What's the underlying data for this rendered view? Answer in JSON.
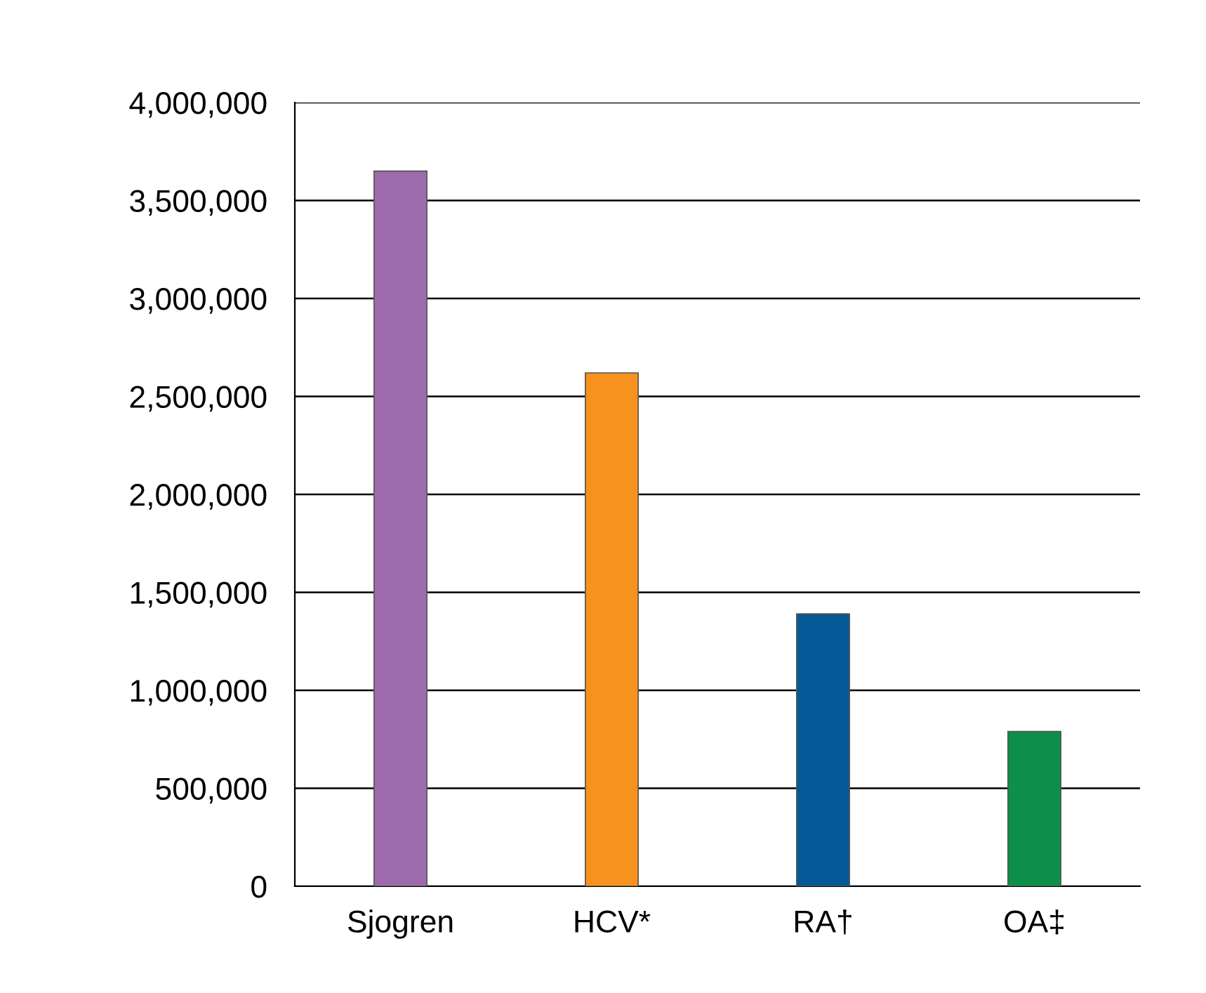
{
  "chart_data": {
    "type": "bar",
    "categories": [
      "Sjogren",
      "HCV*",
      "RA†",
      "OA‡"
    ],
    "values": [
      3650000,
      2620000,
      1390000,
      790000
    ],
    "colors": [
      "#9e6cac",
      "#f7921e",
      "#045996",
      "#0c8f4a"
    ],
    "ylim": [
      0,
      4000000
    ],
    "yticks": [
      0,
      {
        "value": 500000,
        "label": "500,000"
      },
      {
        "value": 1000000,
        "label": "1,000,000"
      },
      {
        "value": 1500000,
        "label": "1,500,000"
      },
      {
        "value": 2000000,
        "label": "2,000,000"
      },
      {
        "value": 2500000,
        "label": "2,500,000"
      },
      {
        "value": 3000000,
        "label": "3,000,000"
      },
      {
        "value": 3500000,
        "label": "3,500,000"
      },
      {
        "value": 4000000,
        "label": "4,000,000"
      }
    ],
    "grid": "y",
    "legend": false
  }
}
